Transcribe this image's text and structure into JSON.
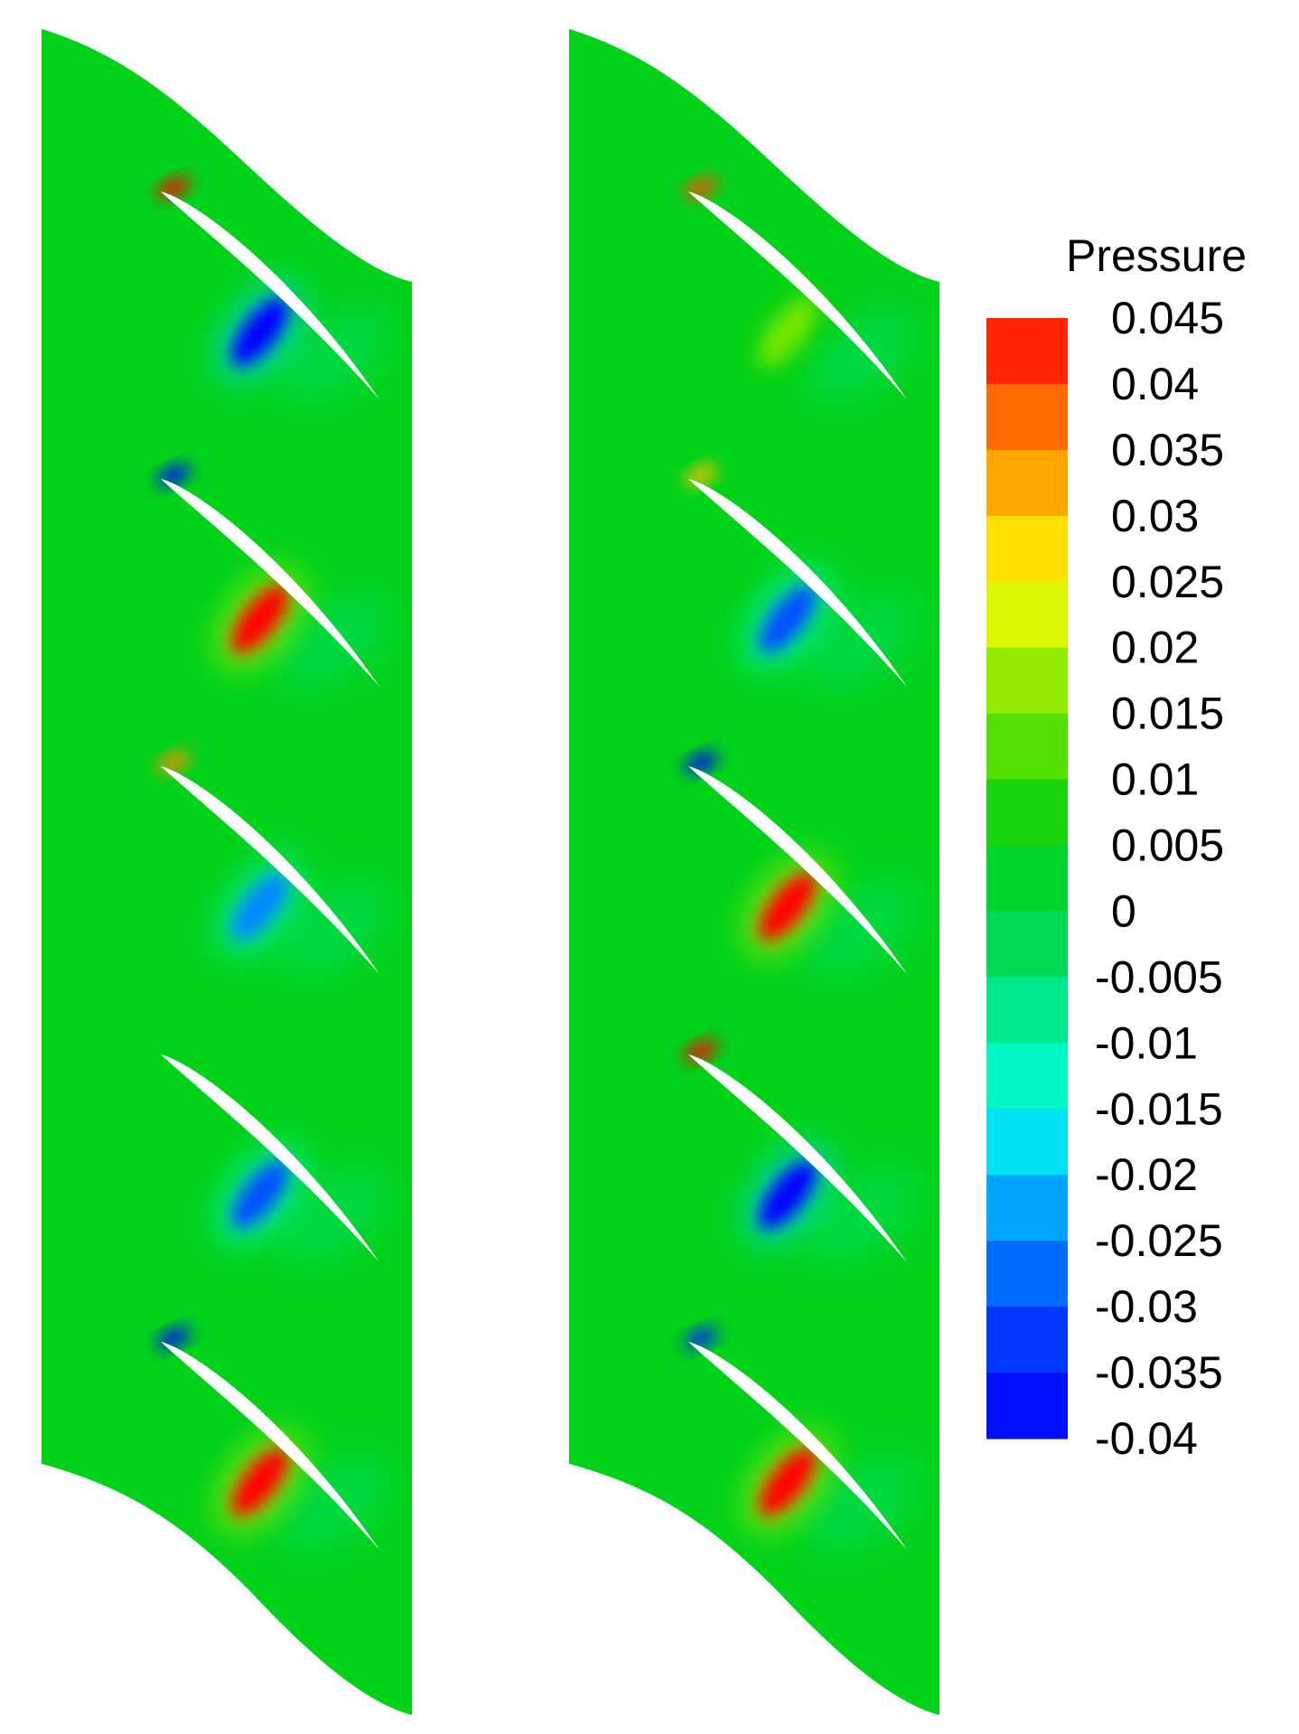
{
  "chart_data": {
    "type": "heatmap",
    "title": "",
    "colorbar": {
      "title": "Pressure",
      "range": [
        -0.04,
        0.045
      ],
      "tick_labels": [
        "0.045",
        "0.04",
        "0.035",
        "0.03",
        "0.025",
        "0.02",
        "0.015",
        "0.01",
        "0.005",
        "0",
        "-0.005",
        "-0.01",
        "-0.015",
        "-0.02",
        "-0.025",
        "-0.03",
        "-0.035",
        "-0.04"
      ],
      "color_stops": [
        "#ff0000",
        "#ff4a00",
        "#ff8c00",
        "#ffc000",
        "#ffff00",
        "#b8f000",
        "#72e600",
        "#34d800",
        "#00d21a",
        "#00d53c",
        "#00e070",
        "#00f0a8",
        "#00ffe0",
        "#00c4ff",
        "#0088ff",
        "#0050ff",
        "#0020ff",
        "#0000ff"
      ]
    },
    "panels": [
      {
        "name": "",
        "background_value": 0.005,
        "blades": 5,
        "features": [
          {
            "blade": 1,
            "region": "leading edge",
            "value": 0.045
          },
          {
            "blade": 1,
            "region": "pressure side wake",
            "value": -0.04
          },
          {
            "blade": 2,
            "region": "leading edge",
            "value": -0.04
          },
          {
            "blade": 2,
            "region": "pressure side wake",
            "value": 0.045
          },
          {
            "blade": 3,
            "region": "leading edge",
            "value": 0.035
          },
          {
            "blade": 3,
            "region": "pressure side wake",
            "value": -0.025
          },
          {
            "blade": 4,
            "region": "pressure side wake",
            "value": -0.03
          },
          {
            "blade": 5,
            "region": "leading edge",
            "value": -0.04
          },
          {
            "blade": 5,
            "region": "pressure side wake",
            "value": 0.045
          }
        ]
      },
      {
        "name": "",
        "background_value": 0.005,
        "blades": 5,
        "features": [
          {
            "blade": 1,
            "region": "leading edge",
            "value": 0.04
          },
          {
            "blade": 1,
            "region": "pressure side wake",
            "value": 0.015
          },
          {
            "blade": 2,
            "region": "leading edge",
            "value": 0.03
          },
          {
            "blade": 2,
            "region": "pressure side wake",
            "value": -0.03
          },
          {
            "blade": 3,
            "region": "leading edge",
            "value": -0.04
          },
          {
            "blade": 3,
            "region": "pressure side wake",
            "value": 0.045
          },
          {
            "blade": 4,
            "region": "leading edge",
            "value": 0.045
          },
          {
            "blade": 4,
            "region": "pressure side wake",
            "value": -0.04
          },
          {
            "blade": 5,
            "region": "leading edge",
            "value": -0.035
          },
          {
            "blade": 5,
            "region": "pressure side wake",
            "value": 0.045
          }
        ]
      }
    ]
  }
}
